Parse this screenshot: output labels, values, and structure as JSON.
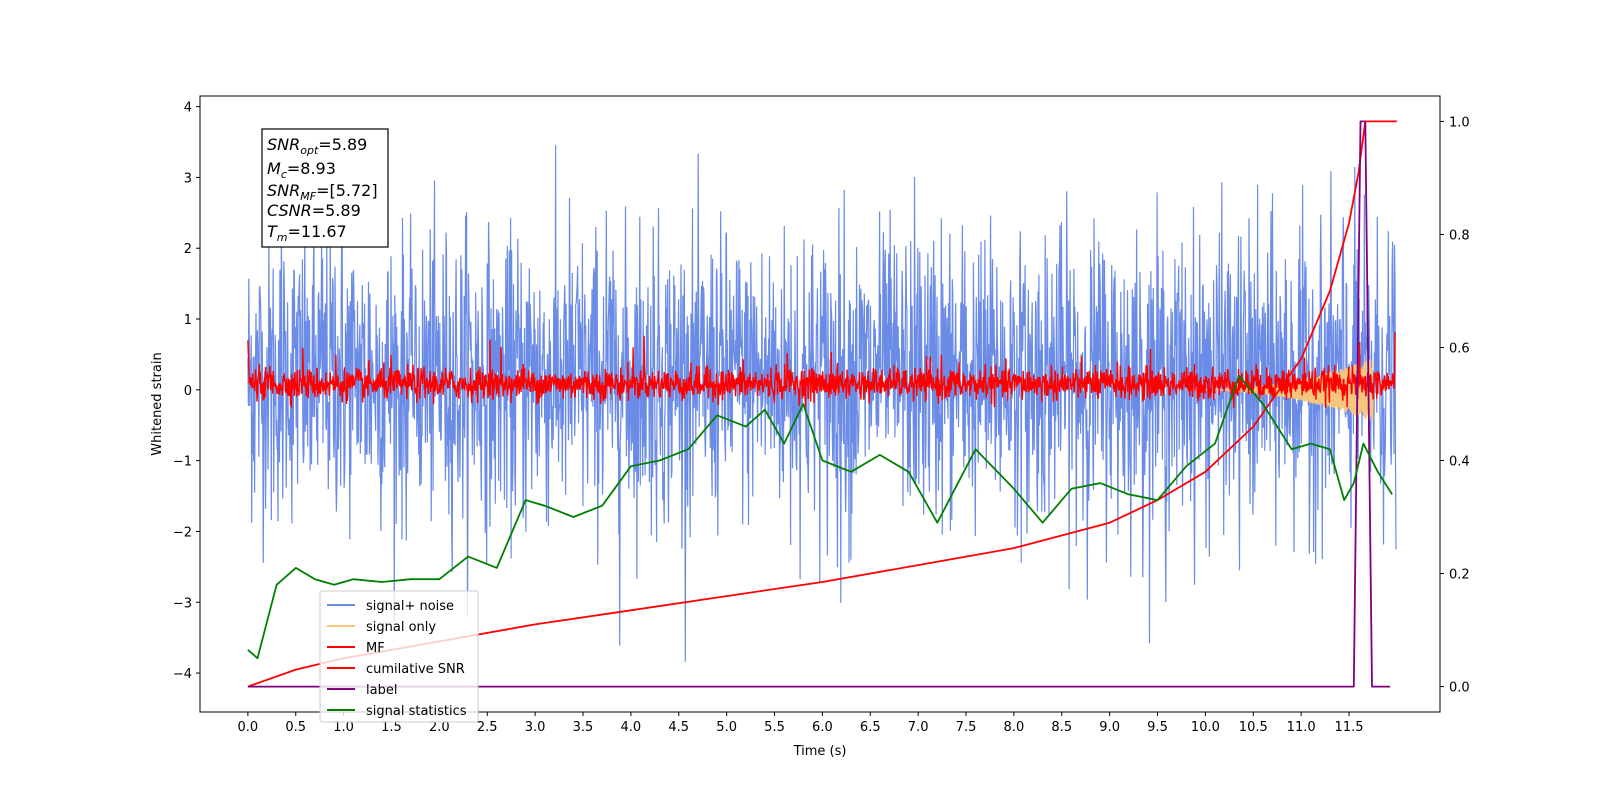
{
  "chart_data": {
    "type": "line",
    "xlabel": "Time (s)",
    "ylabel_left": "Whitened strain",
    "ylabel_right": "",
    "xlim": [
      -0.5,
      12.45
    ],
    "ylim_left": [
      -4.55,
      4.15
    ],
    "ylim_right": [
      -0.045,
      1.045
    ],
    "x_ticks": [
      "0.0",
      "0.5",
      "1.0",
      "1.5",
      "2.0",
      "2.5",
      "3.0",
      "3.5",
      "4.0",
      "4.5",
      "5.0",
      "5.5",
      "6.0",
      "6.5",
      "7.0",
      "7.5",
      "8.0",
      "8.5",
      "9.0",
      "9.5",
      "10.0",
      "10.5",
      "11.0",
      "11.5"
    ],
    "y_ticks_left": [
      "4",
      "3",
      "2",
      "1",
      "0",
      "−1",
      "−2",
      "−3",
      "−4"
    ],
    "y_ticks_right": [
      "1.0",
      "0.8",
      "0.6",
      "0.4",
      "0.2",
      "0.0"
    ],
    "annotations": {
      "snr_opt": {
        "sym": "SNR",
        "sub": "opt",
        "val": "=5.89"
      },
      "mc": {
        "sym": "M",
        "sub": "c",
        "val": "=8.93"
      },
      "snr_mf": {
        "sym": "SNR",
        "sub": "MF",
        "val": "=[5.72]"
      },
      "csnr": {
        "sym": "CSNR",
        "sub": "",
        "val": "=5.89"
      },
      "tm": {
        "sym": "T",
        "sub": "m",
        "val": "=11.67"
      }
    },
    "legend": {
      "position": "lower-left",
      "entries": [
        "signal+ noise",
        "signal only",
        "MF",
        "cumilative SNR",
        "label",
        "signal statistics"
      ]
    },
    "series": [
      {
        "name": "signal+ noise",
        "axis": "left",
        "color": "#6a8be6",
        "kind": "noise",
        "x_range": [
          0.0,
          11.99
        ],
        "envelope": [
          -4.1,
          3.8
        ]
      },
      {
        "name": "signal only",
        "axis": "left",
        "color": "#f5c77e",
        "kind": "chirp",
        "x_range": [
          9.8,
          11.75
        ],
        "amplitude_max": 0.45
      },
      {
        "name": "MF",
        "axis": "left",
        "color": "#ff0000",
        "kind": "noise",
        "x_range": [
          0.0,
          11.99
        ],
        "envelope": [
          -0.3,
          1.0
        ]
      },
      {
        "name": "cumilative SNR",
        "axis": "right",
        "color": "#ff0000",
        "x": [
          0.0,
          0.5,
          1.0,
          2.0,
          3.0,
          4.0,
          5.0,
          6.0,
          7.0,
          8.0,
          9.0,
          9.5,
          10.0,
          10.5,
          11.0,
          11.3,
          11.5,
          11.6,
          11.67,
          12.0
        ],
        "y": [
          0.0,
          0.03,
          0.05,
          0.08,
          0.11,
          0.135,
          0.16,
          0.185,
          0.215,
          0.245,
          0.29,
          0.33,
          0.38,
          0.46,
          0.58,
          0.7,
          0.82,
          0.91,
          1.0,
          1.0
        ]
      },
      {
        "name": "label",
        "axis": "right",
        "color": "#800080",
        "x": [
          0.0,
          11.55,
          11.62,
          11.67,
          11.74,
          11.93
        ],
        "y": [
          0.0,
          0.0,
          1.0,
          1.0,
          0.0,
          0.0
        ]
      },
      {
        "name": "signal statistics",
        "axis": "right",
        "color": "#008000",
        "x": [
          0.0,
          0.1,
          0.3,
          0.5,
          0.7,
          0.9,
          1.1,
          1.4,
          1.7,
          2.0,
          2.3,
          2.6,
          2.9,
          3.1,
          3.4,
          3.7,
          4.0,
          4.3,
          4.6,
          4.9,
          5.2,
          5.4,
          5.6,
          5.8,
          6.0,
          6.3,
          6.6,
          6.9,
          7.2,
          7.6,
          8.0,
          8.3,
          8.6,
          8.9,
          9.2,
          9.5,
          9.8,
          10.1,
          10.35,
          10.6,
          10.9,
          11.1,
          11.3,
          11.45,
          11.55,
          11.65,
          11.8,
          11.95
        ],
        "y": [
          0.065,
          0.05,
          0.18,
          0.21,
          0.19,
          0.18,
          0.19,
          0.185,
          0.19,
          0.19,
          0.23,
          0.21,
          0.33,
          0.32,
          0.3,
          0.32,
          0.39,
          0.4,
          0.42,
          0.48,
          0.46,
          0.49,
          0.43,
          0.5,
          0.4,
          0.38,
          0.41,
          0.38,
          0.29,
          0.42,
          0.35,
          0.29,
          0.35,
          0.36,
          0.34,
          0.33,
          0.39,
          0.43,
          0.55,
          0.5,
          0.42,
          0.43,
          0.42,
          0.33,
          0.36,
          0.43,
          0.38,
          0.34
        ]
      }
    ]
  }
}
